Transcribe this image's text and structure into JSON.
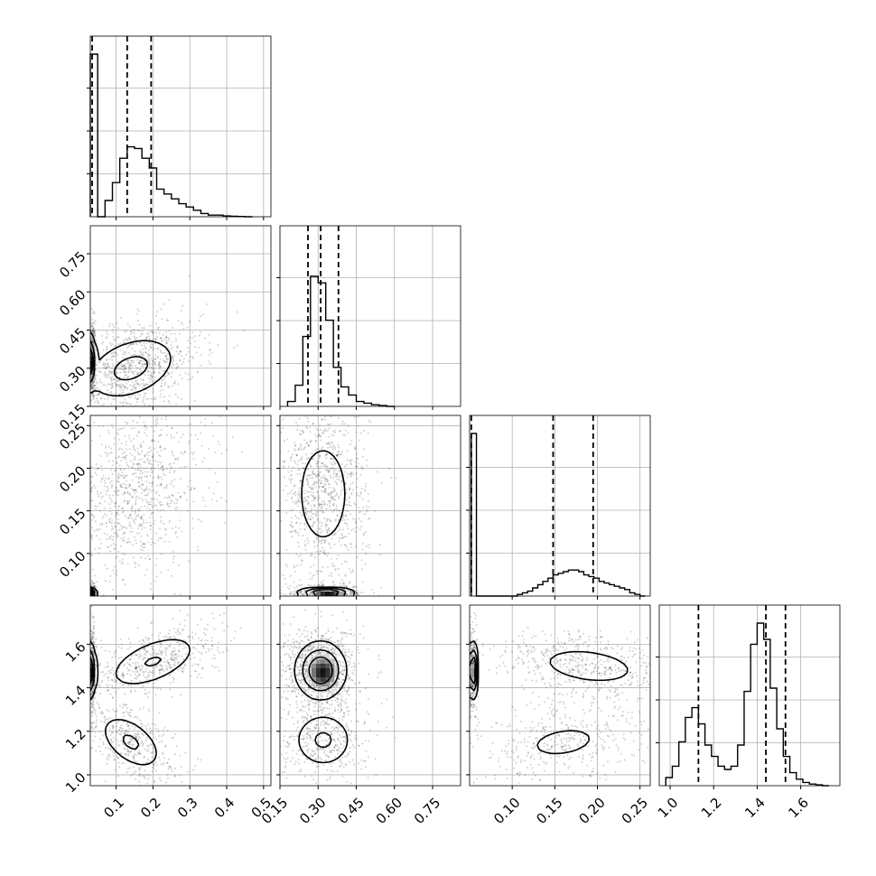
{
  "chart_data": {
    "type": "corner",
    "grid": true,
    "quantile_lines": "dashed",
    "parameters": [
      {
        "range": [
          0.03,
          0.52
        ],
        "ticks": [
          {
            "v": 0.1,
            "t": "0.1"
          },
          {
            "v": 0.2,
            "t": "0.2"
          },
          {
            "v": 0.3,
            "t": "0.3"
          },
          {
            "v": 0.4,
            "t": "0.4"
          },
          {
            "v": 0.5,
            "t": "0.5"
          }
        ],
        "quantiles": [
          0.035,
          0.13,
          0.195
        ],
        "histogram": {
          "edges": [
            0.03,
            0.05,
            0.07,
            0.09,
            0.11,
            0.13,
            0.15,
            0.17,
            0.19,
            0.21,
            0.23,
            0.25,
            0.27,
            0.29,
            0.31,
            0.33,
            0.35,
            0.37,
            0.39,
            0.41,
            0.43,
            0.45,
            0.47
          ],
          "counts": [
            1.0,
            0.0,
            0.1,
            0.21,
            0.36,
            0.43,
            0.42,
            0.36,
            0.3,
            0.17,
            0.14,
            0.11,
            0.08,
            0.06,
            0.04,
            0.02,
            0.01,
            0.01,
            0.005,
            0.003,
            0.002,
            0.0
          ]
        }
      },
      {
        "range": [
          0.15,
          0.86
        ],
        "ticks": [
          {
            "v": 0.15,
            "t": "0.15"
          },
          {
            "v": 0.3,
            "t": "0.30"
          },
          {
            "v": 0.45,
            "t": "0.45"
          },
          {
            "v": 0.6,
            "t": "0.60"
          },
          {
            "v": 0.75,
            "t": "0.75"
          }
        ],
        "quantiles": [
          0.26,
          0.31,
          0.38
        ],
        "histogram": {
          "edges": [
            0.18,
            0.21,
            0.24,
            0.27,
            0.3,
            0.33,
            0.36,
            0.39,
            0.42,
            0.45,
            0.48,
            0.51,
            0.54,
            0.57,
            0.6
          ],
          "counts": [
            0.03,
            0.13,
            0.43,
            0.8,
            0.76,
            0.53,
            0.24,
            0.12,
            0.07,
            0.03,
            0.02,
            0.01,
            0.005,
            0.0
          ]
        }
      },
      {
        "range": [
          0.05,
          0.262
        ],
        "ticks": [
          {
            "v": 0.1,
            "t": "0.10"
          },
          {
            "v": 0.15,
            "t": "0.15"
          },
          {
            "v": 0.2,
            "t": "0.20"
          },
          {
            "v": 0.25,
            "t": "0.25"
          }
        ],
        "quantiles": [
          0.052,
          0.148,
          0.195
        ],
        "histogram": {
          "edges": [
            0.052,
            0.058,
            0.064,
            0.07,
            0.076,
            0.082,
            0.088,
            0.094,
            0.1,
            0.106,
            0.112,
            0.118,
            0.124,
            0.13,
            0.136,
            0.142,
            0.148,
            0.154,
            0.16,
            0.166,
            0.172,
            0.178,
            0.184,
            0.19,
            0.196,
            0.202,
            0.208,
            0.214,
            0.22,
            0.226,
            0.232,
            0.238,
            0.244,
            0.25,
            0.256
          ],
          "counts": [
            1.0,
            0.0,
            0.0,
            0.0,
            0.0,
            0.0,
            0.0,
            0.0,
            0.0,
            0.01,
            0.02,
            0.03,
            0.05,
            0.07,
            0.09,
            0.11,
            0.13,
            0.14,
            0.15,
            0.16,
            0.16,
            0.15,
            0.13,
            0.12,
            0.11,
            0.09,
            0.08,
            0.07,
            0.06,
            0.05,
            0.04,
            0.02,
            0.01,
            0.0
          ]
        }
      },
      {
        "range": [
          0.95,
          1.78
        ],
        "ticks": [
          {
            "v": 1.0,
            "t": "1.0"
          },
          {
            "v": 1.2,
            "t": "1.2"
          },
          {
            "v": 1.4,
            "t": "1.4"
          },
          {
            "v": 1.6,
            "t": "1.6"
          }
        ],
        "quantiles": [
          1.13,
          1.44,
          1.53
        ],
        "histogram": {
          "edges": [
            0.98,
            1.01,
            1.04,
            1.07,
            1.1,
            1.13,
            1.16,
            1.19,
            1.22,
            1.25,
            1.28,
            1.31,
            1.34,
            1.37,
            1.4,
            1.43,
            1.46,
            1.49,
            1.52,
            1.55,
            1.58,
            1.61,
            1.64,
            1.67,
            1.7,
            1.73
          ],
          "counts": [
            0.05,
            0.12,
            0.27,
            0.42,
            0.48,
            0.38,
            0.25,
            0.18,
            0.12,
            0.1,
            0.12,
            0.25,
            0.58,
            0.87,
            1.0,
            0.9,
            0.6,
            0.35,
            0.18,
            0.08,
            0.04,
            0.02,
            0.01,
            0.005,
            0.0
          ]
        }
      }
    ],
    "pairs": [
      {
        "row": 1,
        "col": 0,
        "modes": [
          {
            "mx": 0.035,
            "my": 0.33,
            "sx": 0.003,
            "sy": 0.05,
            "w": 0.3
          },
          {
            "mx": 0.14,
            "my": 0.3,
            "sx": 0.06,
            "sy": 0.06,
            "rho": 0.35,
            "w": 0.7
          }
        ]
      },
      {
        "row": 2,
        "col": 0,
        "modes": [
          {
            "mx": 0.035,
            "my": 0.053,
            "sx": 0.003,
            "sy": 0.003,
            "w": 0.3
          },
          {
            "mx": 0.15,
            "my": 0.17,
            "sx": 0.06,
            "sy": 0.033,
            "rho": 0.25,
            "w": 0.7
          }
        ]
      },
      {
        "row": 2,
        "col": 1,
        "modes": [
          {
            "mx": 0.33,
            "my": 0.053,
            "sx": 0.05,
            "sy": 0.003,
            "w": 0.3
          },
          {
            "mx": 0.32,
            "my": 0.17,
            "sx": 0.055,
            "sy": 0.033,
            "w": 0.7
          }
        ]
      },
      {
        "row": 3,
        "col": 0,
        "modes": [
          {
            "mx": 0.035,
            "my": 1.48,
            "sx": 0.003,
            "sy": 0.06,
            "w": 0.3
          },
          {
            "mx": 0.2,
            "my": 1.52,
            "sx": 0.06,
            "sy": 0.06,
            "rho": 0.55,
            "w": 0.4
          },
          {
            "mx": 0.14,
            "my": 1.15,
            "sx": 0.04,
            "sy": 0.06,
            "rho": -0.5,
            "w": 0.3
          }
        ]
      },
      {
        "row": 3,
        "col": 1,
        "modes": [
          {
            "mx": 0.31,
            "my": 1.48,
            "sx": 0.045,
            "sy": 0.06,
            "w": 0.7
          },
          {
            "mx": 0.32,
            "my": 1.16,
            "sx": 0.055,
            "sy": 0.06,
            "w": 0.3
          }
        ]
      },
      {
        "row": 3,
        "col": 2,
        "modes": [
          {
            "mx": 0.053,
            "my": 1.48,
            "sx": 0.002,
            "sy": 0.06,
            "w": 0.3
          },
          {
            "mx": 0.19,
            "my": 1.5,
            "sx": 0.035,
            "sy": 0.05,
            "rho": -0.3,
            "w": 0.4
          },
          {
            "mx": 0.16,
            "my": 1.15,
            "sx": 0.035,
            "sy": 0.06,
            "rho": 0.3,
            "w": 0.3
          }
        ]
      }
    ]
  }
}
